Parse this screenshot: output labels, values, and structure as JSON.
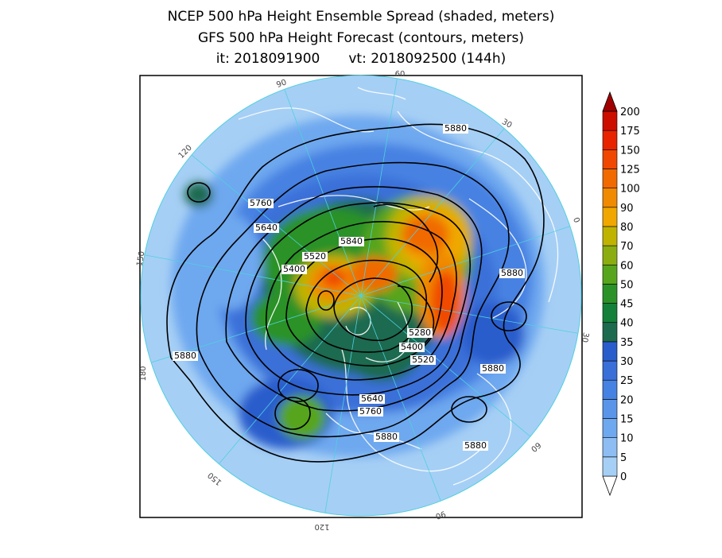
{
  "title": {
    "line1": "NCEP 500 hPa Height Ensemble Spread (shaded, meters)",
    "line2": "GFS 500 hPa Height Forecast (contours, meters)",
    "init": "it: 2018091900",
    "valid": "vt: 2018092500 (144h)"
  },
  "map": {
    "projection": "north polar stereographic",
    "longitude_labels": [
      "60",
      "30",
      "0",
      "30",
      "60",
      "90",
      "120",
      "150",
      "180",
      "150",
      "120",
      "90"
    ],
    "contour_labels": [
      "5880",
      "5760",
      "5640",
      "5520",
      "5400",
      "5840",
      "5880",
      "5880",
      "5280",
      "5400",
      "5520",
      "5880",
      "5640",
      "5760",
      "5880",
      "5880"
    ]
  },
  "colorbar": {
    "levels": [
      "0",
      "5",
      "10",
      "15",
      "20",
      "25",
      "30",
      "35",
      "40",
      "45",
      "50",
      "60",
      "70",
      "80",
      "90",
      "100",
      "125",
      "150",
      "175",
      "200"
    ],
    "colors": [
      "#a6cff5",
      "#8dbdf2",
      "#6ea8ef",
      "#5a95e9",
      "#4682e2",
      "#3a6fd8",
      "#2a5dcc",
      "#1d6b4f",
      "#14803a",
      "#2b9228",
      "#57a51d",
      "#8cad10",
      "#c0b300",
      "#f0a800",
      "#f08a00",
      "#f06a00",
      "#f04800",
      "#e82400",
      "#cc0e00",
      "#a00000"
    ]
  }
}
